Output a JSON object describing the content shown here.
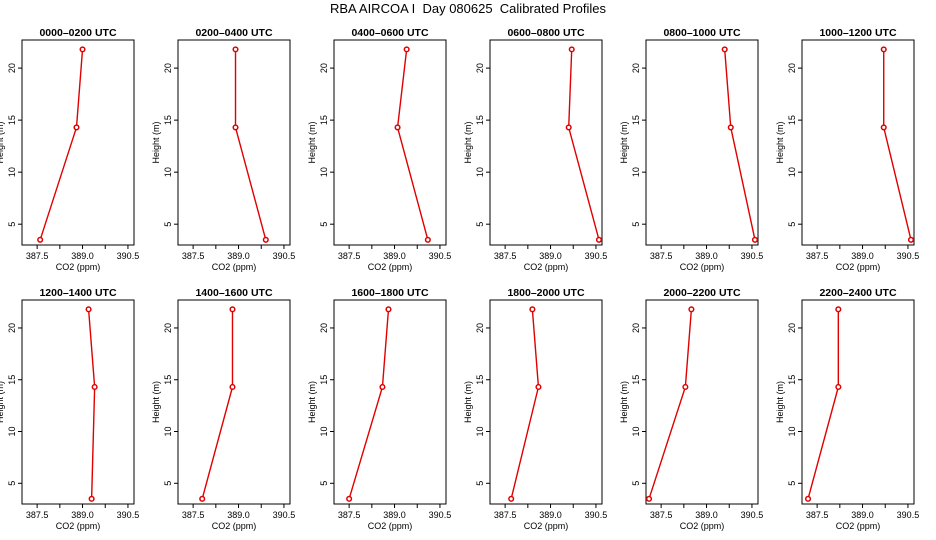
{
  "title": "RBA AIRCOA I  Day 080625  Calibrated Profiles",
  "chart_data": [
    {
      "type": "line",
      "title": "0000–0200 UTC",
      "xlabel": "CO2 (ppm)",
      "ylabel": "Height (m)",
      "xlim": [
        387.0,
        390.7
      ],
      "ylim": [
        3.0,
        22.7
      ],
      "xticks": [
        "387.5",
        "389.0",
        "390.5"
      ],
      "yticks": [
        "5",
        "10",
        "15",
        "20"
      ],
      "x": [
        387.6,
        388.8,
        389.0
      ],
      "y": [
        3.5,
        14.3,
        21.8
      ]
    },
    {
      "type": "line",
      "title": "0200–0400 UTC",
      "xlabel": "CO2 (ppm)",
      "ylabel": "Height (m)",
      "xlim": [
        387.0,
        390.7
      ],
      "ylim": [
        3.0,
        22.7
      ],
      "xticks": [
        "387.5",
        "389.0",
        "390.5"
      ],
      "yticks": [
        "5",
        "10",
        "15",
        "20"
      ],
      "x": [
        389.9,
        388.9,
        388.9
      ],
      "y": [
        3.5,
        14.3,
        21.8
      ]
    },
    {
      "type": "line",
      "title": "0400–0600 UTC",
      "xlabel": "CO2 (ppm)",
      "ylabel": "Height (m)",
      "xlim": [
        387.0,
        390.7
      ],
      "ylim": [
        3.0,
        22.7
      ],
      "xticks": [
        "387.5",
        "389.0",
        "390.5"
      ],
      "yticks": [
        "5",
        "10",
        "15",
        "20"
      ],
      "x": [
        390.1,
        389.1,
        389.4
      ],
      "y": [
        3.5,
        14.3,
        21.8
      ]
    },
    {
      "type": "line",
      "title": "0600–0800 UTC",
      "xlabel": "CO2 (ppm)",
      "ylabel": "Height (m)",
      "xlim": [
        387.0,
        390.7
      ],
      "ylim": [
        3.0,
        22.7
      ],
      "xticks": [
        "387.5",
        "389.0",
        "390.5"
      ],
      "yticks": [
        "5",
        "10",
        "15",
        "20"
      ],
      "x": [
        390.6,
        389.6,
        389.7
      ],
      "y": [
        3.5,
        14.3,
        21.8
      ]
    },
    {
      "type": "line",
      "title": "0800–1000 UTC",
      "xlabel": "CO2 (ppm)",
      "ylabel": "Height (m)",
      "xlim": [
        387.0,
        390.7
      ],
      "ylim": [
        3.0,
        22.7
      ],
      "xticks": [
        "387.5",
        "389.0",
        "390.5"
      ],
      "yticks": [
        "5",
        "10",
        "15",
        "20"
      ],
      "x": [
        390.6,
        389.8,
        389.6
      ],
      "y": [
        3.5,
        14.3,
        21.8
      ]
    },
    {
      "type": "line",
      "title": "1000–1200 UTC",
      "xlabel": "CO2 (ppm)",
      "ylabel": "Height (m)",
      "xlim": [
        387.0,
        390.7
      ],
      "ylim": [
        3.0,
        22.7
      ],
      "xticks": [
        "387.5",
        "389.0",
        "390.5"
      ],
      "yticks": [
        "5",
        "10",
        "15",
        "20"
      ],
      "x": [
        390.6,
        389.7,
        389.7
      ],
      "y": [
        3.5,
        14.3,
        21.8
      ]
    },
    {
      "type": "line",
      "title": "1200–1400 UTC",
      "xlabel": "CO2 (ppm)",
      "ylabel": "Height (m)",
      "xlim": [
        387.0,
        390.7
      ],
      "ylim": [
        3.0,
        22.7
      ],
      "xticks": [
        "387.5",
        "389.0",
        "390.5"
      ],
      "yticks": [
        "5",
        "10",
        "15",
        "20"
      ],
      "x": [
        389.3,
        389.4,
        389.2
      ],
      "y": [
        3.5,
        14.3,
        21.8
      ]
    },
    {
      "type": "line",
      "title": "1400–1600 UTC",
      "xlabel": "CO2 (ppm)",
      "ylabel": "Height (m)",
      "xlim": [
        387.0,
        390.7
      ],
      "ylim": [
        3.0,
        22.7
      ],
      "xticks": [
        "387.5",
        "389.0",
        "390.5"
      ],
      "yticks": [
        "5",
        "10",
        "15",
        "20"
      ],
      "x": [
        387.8,
        388.8,
        388.8
      ],
      "y": [
        3.5,
        14.3,
        21.8
      ]
    },
    {
      "type": "line",
      "title": "1600–1800 UTC",
      "xlabel": "CO2 (ppm)",
      "ylabel": "Height (m)",
      "xlim": [
        387.0,
        390.7
      ],
      "ylim": [
        3.0,
        22.7
      ],
      "xticks": [
        "387.5",
        "389.0",
        "390.5"
      ],
      "yticks": [
        "5",
        "10",
        "15",
        "20"
      ],
      "x": [
        387.5,
        388.6,
        388.8
      ],
      "y": [
        3.5,
        14.3,
        21.8
      ]
    },
    {
      "type": "line",
      "title": "1800–2000 UTC",
      "xlabel": "CO2 (ppm)",
      "ylabel": "Height (m)",
      "xlim": [
        387.0,
        390.7
      ],
      "ylim": [
        3.0,
        22.7
      ],
      "xticks": [
        "387.5",
        "389.0",
        "390.5"
      ],
      "yticks": [
        "5",
        "10",
        "15",
        "20"
      ],
      "x": [
        387.7,
        388.6,
        388.4
      ],
      "y": [
        3.5,
        14.3,
        21.8
      ]
    },
    {
      "type": "line",
      "title": "2000–2200 UTC",
      "xlabel": "CO2 (ppm)",
      "ylabel": "Height (m)",
      "xlim": [
        387.0,
        390.7
      ],
      "ylim": [
        3.0,
        22.7
      ],
      "xticks": [
        "387.5",
        "389.0",
        "390.5"
      ],
      "yticks": [
        "5",
        "10",
        "15",
        "20"
      ],
      "x": [
        387.1,
        388.3,
        388.5
      ],
      "y": [
        3.5,
        14.3,
        21.8
      ]
    },
    {
      "type": "line",
      "title": "2200–2400 UTC",
      "xlabel": "CO2 (ppm)",
      "ylabel": "Height (m)",
      "xlim": [
        387.0,
        390.7
      ],
      "ylim": [
        3.0,
        22.7
      ],
      "xticks": [
        "387.5",
        "389.0",
        "390.5"
      ],
      "yticks": [
        "5",
        "10",
        "15",
        "20"
      ],
      "x": [
        387.2,
        388.2,
        388.2
      ],
      "y": [
        3.5,
        14.3,
        21.8
      ]
    }
  ],
  "colors": {
    "line": "#e00000",
    "axis": "#000000"
  }
}
